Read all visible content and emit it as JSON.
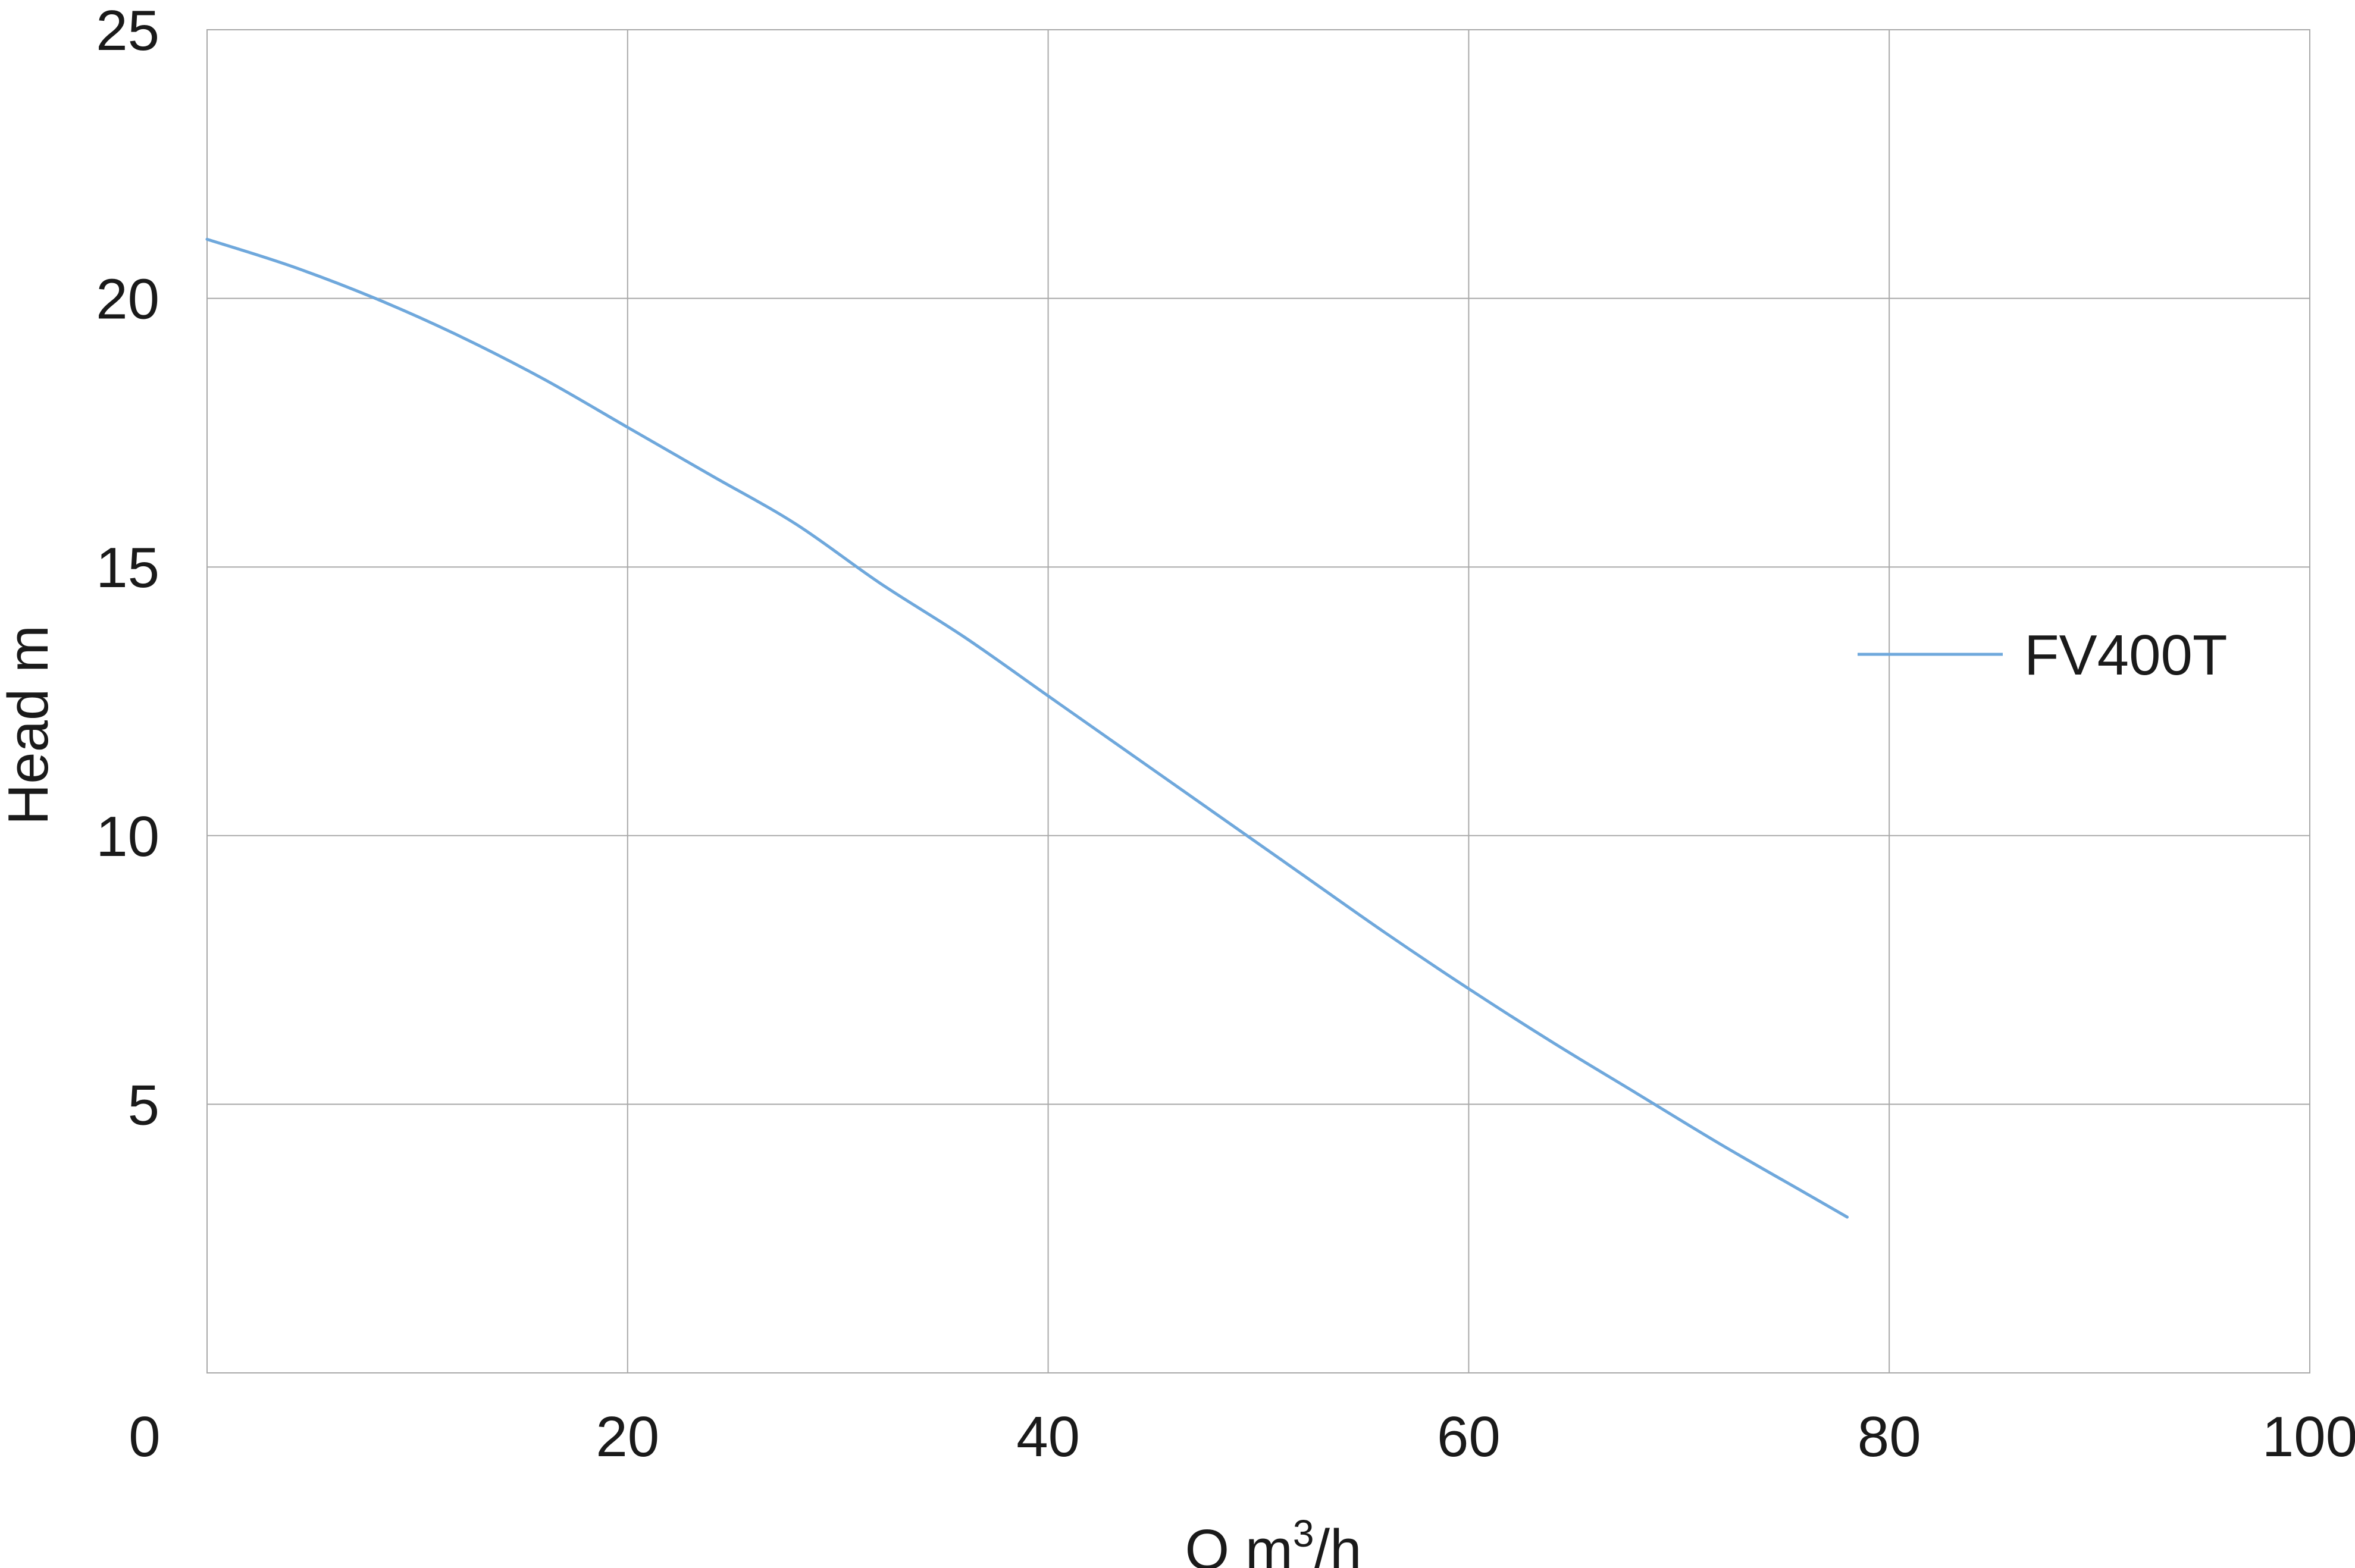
{
  "chart_data": {
    "type": "line",
    "xlabel": {
      "main": "Q m",
      "sup": "3",
      "tail": "/h"
    },
    "ylabel": "Head m",
    "xlim": [
      0,
      100
    ],
    "ylim": [
      0,
      25
    ],
    "x_ticks": [
      0,
      20,
      40,
      60,
      80,
      100
    ],
    "y_ticks": [
      5,
      10,
      15,
      20,
      25
    ],
    "grid": true,
    "legend_position": "right",
    "series": [
      {
        "name": "FV400T",
        "color": "#6fa8dc",
        "x": [
          0,
          4,
          8,
          12,
          16,
          20,
          24,
          28,
          32,
          36,
          40,
          44,
          48,
          52,
          56,
          60,
          64,
          68,
          72,
          76,
          78
        ],
        "y": [
          21.1,
          20.6,
          20.0,
          19.3,
          18.5,
          17.6,
          16.7,
          15.8,
          14.7,
          13.7,
          12.6,
          11.5,
          10.4,
          9.3,
          8.2,
          7.15,
          6.15,
          5.2,
          4.25,
          3.35,
          2.9
        ]
      }
    ]
  }
}
